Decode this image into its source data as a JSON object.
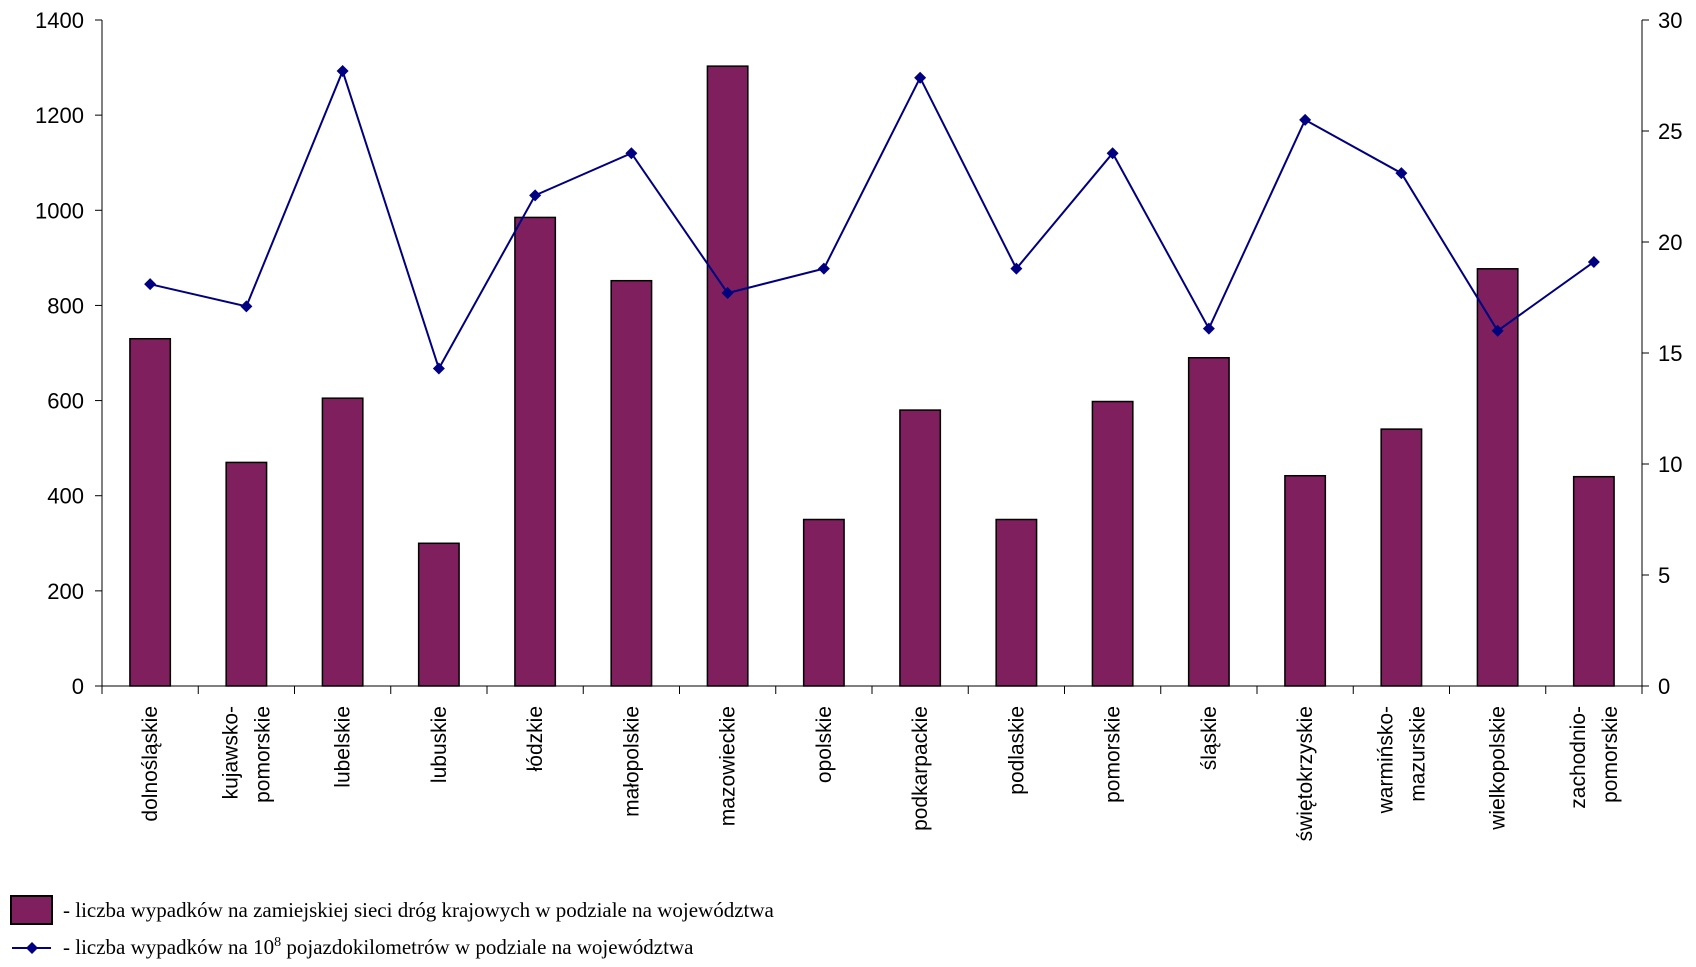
{
  "chart_data": {
    "type": "bar",
    "categories": [
      "dolnośląskie",
      "kujawsko-\npomorskie",
      "lubelskie",
      "lubuskie",
      "łódzkie",
      "małopolskie",
      "mazowieckie",
      "opolskie",
      "podkarpackie",
      "podlaskie",
      "pomorskie",
      "śląskie",
      "świętokrzyskie",
      "warmińsko-\nmazurskie",
      "wielkopolskie",
      "zachodnio-\npomorskie"
    ],
    "series": [
      {
        "type": "bar",
        "axis": "left",
        "color": "#7f1f5e",
        "values": [
          730,
          470,
          605,
          300,
          985,
          852,
          1303,
          350,
          580,
          350,
          598,
          690,
          442,
          540,
          877,
          440
        ]
      },
      {
        "type": "line",
        "axis": "right",
        "color": "#000080",
        "values": [
          18.1,
          17.1,
          27.7,
          14.3,
          22.1,
          24.0,
          17.7,
          18.8,
          27.4,
          18.8,
          24.0,
          16.1,
          25.5,
          23.1,
          16.0,
          19.1
        ]
      }
    ],
    "y_left": {
      "min": 0,
      "max": 1400,
      "ticks": [
        0,
        200,
        400,
        600,
        800,
        1000,
        1200,
        1400
      ]
    },
    "y_right": {
      "min": 0,
      "max": 30,
      "ticks": [
        0,
        5,
        10,
        15,
        20,
        25,
        30
      ]
    },
    "grid": false
  },
  "legend": {
    "bar_prefix": "- liczba wypadków na zamiejskiej sieci dróg krajowych w podziale na województwa",
    "line_prefix": "- liczba wypadków na 10",
    "line_sup": "8",
    "line_suffix": "  pojazdokilometrów w podziale na województwa"
  }
}
